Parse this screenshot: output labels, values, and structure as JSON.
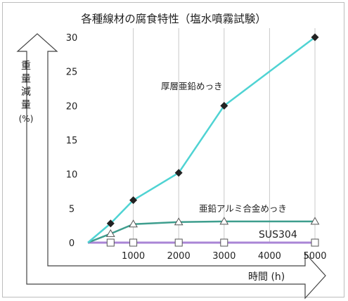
{
  "chart_data": {
    "type": "line",
    "title": "各種線材の腐食特性（塩水噴霧試験）",
    "xlabel": "時間 (h)",
    "ylabel": "重量減量",
    "ylabel_unit": "(%)",
    "xlim": [
      0,
      5000
    ],
    "ylim": [
      0,
      30
    ],
    "x_ticks": [
      "1000",
      "2000",
      "3000",
      "4000",
      "5000"
    ],
    "y_ticks": [
      "0",
      "5",
      "10",
      "15",
      "20",
      "25",
      "30"
    ],
    "grid": "vertical",
    "series": [
      {
        "name": "厚層亜鉛めっき",
        "color": "#4fd3d3",
        "marker": "diamond-filled",
        "marker_color": "#222222",
        "points": [
          [
            0,
            0
          ],
          [
            500,
            2.8
          ],
          [
            1000,
            6.2
          ],
          [
            2000,
            10.2
          ],
          [
            3000,
            20
          ],
          [
            5000,
            30
          ]
        ],
        "marked_x": [
          500,
          1000,
          2000,
          3000,
          5000
        ]
      },
      {
        "name": "亜鉛アルミ合金めっき",
        "color": "#3e9e8e",
        "marker": "triangle-open",
        "marker_color": "#555555",
        "points": [
          [
            0,
            0
          ],
          [
            500,
            1.3
          ],
          [
            1000,
            2.7
          ],
          [
            2000,
            3.0
          ],
          [
            3000,
            3.1
          ],
          [
            5000,
            3.1
          ]
        ],
        "marked_x": [
          500,
          1000,
          2000,
          3000,
          5000
        ]
      },
      {
        "name": "SUS304",
        "color": "#a985d6",
        "marker": "square-open",
        "marker_color": "#555555",
        "points": [
          [
            0,
            0
          ],
          [
            500,
            0
          ],
          [
            1000,
            0
          ],
          [
            2000,
            0
          ],
          [
            3000,
            0
          ],
          [
            5000,
            0
          ]
        ],
        "marked_x": [
          500,
          1000,
          2000,
          3000,
          5000
        ]
      }
    ]
  }
}
